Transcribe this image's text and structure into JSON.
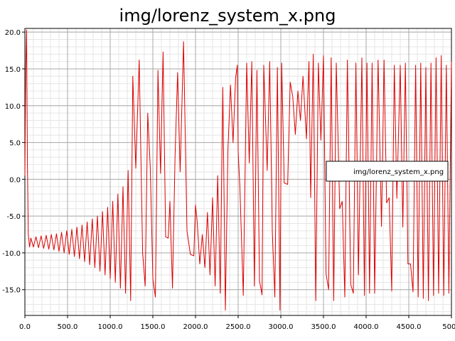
{
  "chart_data": {
    "type": "line",
    "title": "img/lorenz_system_x.png",
    "xlabel": "",
    "ylabel": "",
    "xlim": [
      0,
      5000
    ],
    "ylim": [
      -18.5,
      20.5
    ],
    "x_ticks": [
      "0.0",
      "500.0",
      "1000.0",
      "1500.0",
      "2000.0",
      "2500.0",
      "3000.0",
      "3500.0",
      "4000.0",
      "4500.0",
      "5000"
    ],
    "y_ticks": [
      "20.0",
      "15.0",
      "10.0",
      "5.0",
      "0.0",
      "-5.0",
      "-10.0",
      "-15.0"
    ],
    "grid": true,
    "legend_position": "right",
    "series": [
      {
        "name": "img/lorenz_system_x.png",
        "color": "#dd0000",
        "x": [
          0,
          10,
          20,
          30,
          40,
          55,
          70,
          100,
          130,
          160,
          190,
          220,
          250,
          280,
          310,
          340,
          370,
          400,
          430,
          460,
          490,
          520,
          550,
          580,
          610,
          640,
          670,
          700,
          730,
          760,
          790,
          820,
          850,
          880,
          910,
          940,
          970,
          1000,
          1030,
          1060,
          1090,
          1120,
          1150,
          1180,
          1210,
          1240,
          1265,
          1300,
          1340,
          1380,
          1410,
          1440,
          1470,
          1500,
          1530,
          1560,
          1590,
          1620,
          1650,
          1680,
          1700,
          1730,
          1760,
          1790,
          1820,
          1860,
          1900,
          1940,
          1980,
          2000,
          2020,
          2050,
          2080,
          2110,
          2140,
          2170,
          2200,
          2230,
          2260,
          2290,
          2320,
          2350,
          2380,
          2410,
          2440,
          2470,
          2490,
          2500,
          2520,
          2560,
          2600,
          2630,
          2660,
          2690,
          2720,
          2750,
          2780,
          2800,
          2840,
          2870,
          2900,
          2930,
          2960,
          2990,
          3010,
          3040,
          3080,
          3110,
          3140,
          3170,
          3200,
          3230,
          3260,
          3300,
          3330,
          3350,
          3380,
          3410,
          3440,
          3470,
          3500,
          3530,
          3560,
          3590,
          3620,
          3650,
          3690,
          3720,
          3750,
          3780,
          3820,
          3850,
          3880,
          3910,
          3950,
          3980,
          4010,
          4040,
          4070,
          4100,
          4140,
          4180,
          4210,
          4240,
          4270,
          4300,
          4330,
          4360,
          4400,
          4430,
          4460,
          4490,
          4520,
          4550,
          4580,
          4610,
          4640,
          4670,
          4700,
          4730,
          4760,
          4790,
          4820,
          4850,
          4880,
          4910,
          4940,
          4970,
          5000
        ],
        "y": [
          0.5,
          15,
          20.3,
          2,
          -7.5,
          -9.2,
          -8,
          -9.2,
          -7.8,
          -9.3,
          -7.7,
          -9.4,
          -7.6,
          -9.5,
          -7.5,
          -9.6,
          -7.4,
          -9.8,
          -7.2,
          -10,
          -7,
          -10.2,
          -6.8,
          -10.5,
          -6.5,
          -10.8,
          -6.2,
          -11.2,
          -5.8,
          -11.6,
          -5.4,
          -12,
          -5,
          -12.5,
          -4.4,
          -13,
          -3.8,
          -13.5,
          -3,
          -14,
          -2,
          -14.8,
          -1,
          -15.5,
          1.2,
          -16.5,
          14,
          1.5,
          16.2,
          -10,
          -14.5,
          9,
          1.5,
          -13.5,
          -16,
          14.8,
          0.8,
          17.3,
          -7.8,
          -8,
          -3,
          -14.8,
          3,
          14.5,
          1,
          18.7,
          -7,
          -10.2,
          -10.4,
          -3.5,
          -5.8,
          -11.5,
          -7.5,
          -12,
          -4.5,
          -13,
          -2.5,
          -14.5,
          0.5,
          -15.5,
          12.5,
          -17.8,
          4,
          12.8,
          5,
          13.8,
          15.5,
          3.8,
          -1,
          -15.8,
          15.8,
          2.2,
          16,
          -14.5,
          14.8,
          -13.8,
          -15.7,
          15.5,
          1.2,
          16,
          -7,
          -16,
          15.2,
          -17.8,
          15.8,
          -0.5,
          -0.7,
          13.2,
          11.2,
          6.1,
          12,
          8,
          14,
          5.5,
          16,
          -2.5,
          17,
          -16.5,
          15.8,
          5.3,
          16.8,
          -12.8,
          -15,
          16.5,
          -16.5,
          15.8,
          -4,
          -3,
          -16,
          16.2,
          -14.3,
          -15.5,
          15.8,
          -13,
          16.5,
          -15.8,
          15.8,
          -15.5,
          15.8,
          -15.5,
          16.2,
          -6.4,
          16.2,
          -3.2,
          -2.5,
          -15.2,
          15.5,
          -2.6,
          15.5,
          -6.5,
          15.8,
          -11.5,
          -11.5,
          -15.3,
          15.5,
          -16,
          15.8,
          -16.2,
          15.2,
          -16.5,
          15.8,
          -15.8,
          16.5,
          -15.5,
          16.8,
          -15.8,
          15.5,
          -15.5,
          16
        ]
      }
    ]
  }
}
